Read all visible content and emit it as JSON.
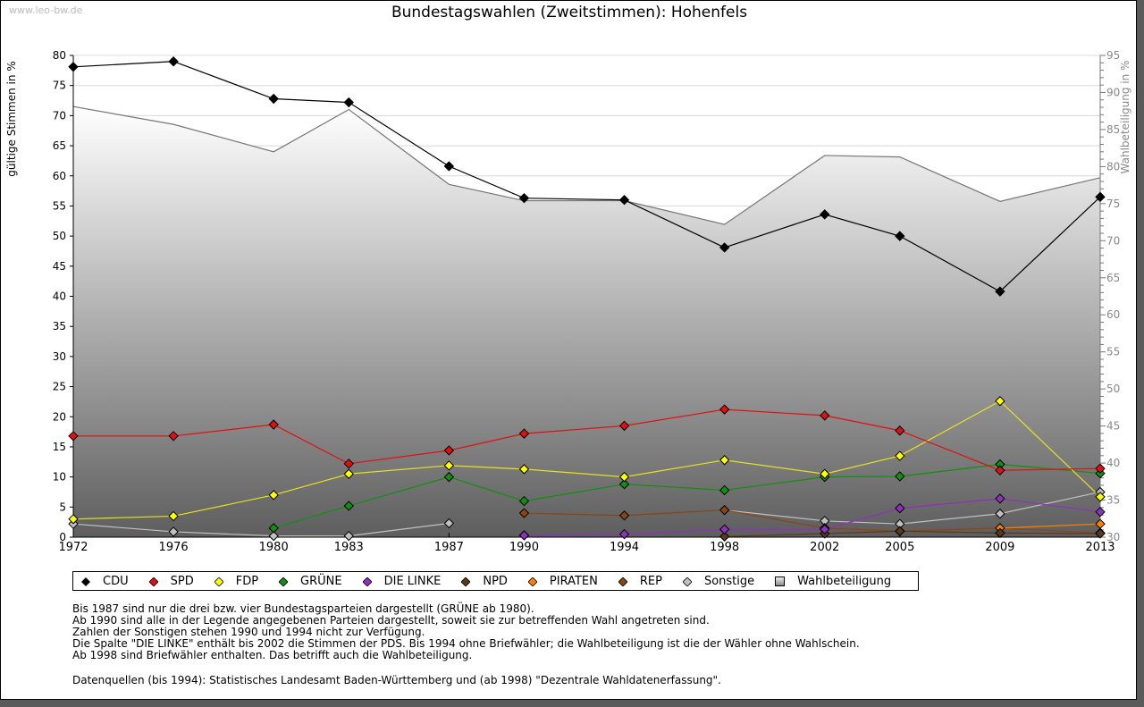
{
  "watermark": "www.leo-bw.de",
  "title": "Bundestagswahlen (Zweitstimmen): Hohenfels",
  "chart_data": {
    "type": "line",
    "title": "Bundestagswahlen (Zweitstimmen): Hohenfels",
    "xlabel": "",
    "ylabel": "gültige Stimmen in %",
    "y2label": "Wahlbeteiligung in %",
    "ylim": [
      0,
      80
    ],
    "y2lim": [
      30,
      95
    ],
    "yticks": [
      0,
      5,
      10,
      15,
      20,
      25,
      30,
      35,
      40,
      45,
      50,
      55,
      60,
      65,
      70,
      75,
      80
    ],
    "y2ticks": [
      30,
      35,
      40,
      45,
      50,
      55,
      60,
      65,
      70,
      75,
      80,
      85,
      90,
      95
    ],
    "x": [
      "1972",
      "1976",
      "1980",
      "1983",
      "1987",
      "1990",
      "1994",
      "1998",
      "2002",
      "2005",
      "2009",
      "2013"
    ],
    "grid": true,
    "legend_position": "bottom",
    "area_series": {
      "name": "Wahlbeteiligung",
      "axis": "right",
      "values": [
        88.1,
        85.7,
        82.0,
        87.7,
        77.6,
        75.4,
        75.4,
        72.2,
        81.5,
        81.3,
        75.3,
        78.5
      ]
    },
    "series": [
      {
        "name": "CDU",
        "color": "#000000",
        "values": [
          78.1,
          79.0,
          72.8,
          72.2,
          61.6,
          56.3,
          56.0,
          48.1,
          53.6,
          50.0,
          40.8,
          56.5
        ]
      },
      {
        "name": "SPD",
        "color": "#e01010",
        "values": [
          16.8,
          16.8,
          18.7,
          12.2,
          14.4,
          17.2,
          18.5,
          21.2,
          20.2,
          17.7,
          11.1,
          11.4
        ]
      },
      {
        "name": "FDP",
        "color": "#ffff00",
        "values": [
          3.0,
          3.5,
          7.0,
          10.5,
          11.9,
          11.3,
          10.0,
          12.8,
          10.5,
          13.5,
          22.6,
          6.7
        ]
      },
      {
        "name": "GRÜNE",
        "color": "#109010",
        "values": [
          null,
          null,
          1.5,
          5.2,
          10.0,
          6.0,
          8.8,
          7.8,
          10.0,
          10.1,
          12.1,
          10.6
        ]
      },
      {
        "name": "DIE LINKE",
        "color": "#9030c0",
        "values": [
          null,
          null,
          null,
          null,
          null,
          0.3,
          0.5,
          1.3,
          1.3,
          4.8,
          6.4,
          4.2
        ]
      },
      {
        "name": "NPD",
        "color": "#5a3a1a",
        "values": [
          null,
          null,
          null,
          null,
          null,
          0.3,
          null,
          0.1,
          0.6,
          1.0,
          0.7,
          0.6
        ]
      },
      {
        "name": "PIRATEN",
        "color": "#ff8000",
        "values": [
          null,
          null,
          null,
          null,
          null,
          null,
          null,
          null,
          null,
          null,
          1.5,
          2.2
        ]
      },
      {
        "name": "REP",
        "color": "#8b4513",
        "values": [
          null,
          null,
          null,
          null,
          null,
          4.0,
          3.6,
          4.5,
          1.5,
          1.0,
          1.5,
          0.7
        ]
      },
      {
        "name": "Sonstige",
        "color": "#c0c0c0",
        "values": [
          2.2,
          0.9,
          0.2,
          0.2,
          2.3,
          null,
          null,
          4.5,
          2.7,
          2.2,
          3.9,
          7.5
        ]
      }
    ]
  },
  "legend": [
    {
      "label": "CDU",
      "color": "#000000"
    },
    {
      "label": "SPD",
      "color": "#e01010"
    },
    {
      "label": "FDP",
      "color": "#ffff00"
    },
    {
      "label": "GRÜNE",
      "color": "#109010"
    },
    {
      "label": "DIE LINKE",
      "color": "#9030c0"
    },
    {
      "label": "NPD",
      "color": "#5a3a1a"
    },
    {
      "label": "PIRATEN",
      "color": "#ff8000"
    },
    {
      "label": "REP",
      "color": "#8b4513"
    },
    {
      "label": "Sonstige",
      "color": "#c0c0c0"
    },
    {
      "label": "Wahlbeteiligung",
      "color": "#aaaaaa",
      "shape": "square"
    }
  ],
  "notes": [
    "Bis 1987 sind nur die drei bzw. vier Bundestagsparteien dargestellt (GRÜNE ab 1980).",
    "Ab 1990 sind alle in der Legende angegebenen Parteien dargestellt, soweit sie zur betreffenden Wahl angetreten sind.",
    "Zahlen der Sonstigen stehen 1990 und 1994 nicht zur Verfügung.",
    "Die Spalte \"DIE LINKE\" enthält bis 2002 die Stimmen der PDS. Bis 1994 ohne Briefwähler; die Wahlbeteiligung ist die der Wähler ohne Wahlschein.",
    "Ab 1998 sind Briefwähler enthalten. Das betrifft auch die Wahlbeteiligung."
  ],
  "source": "Datenquellen (bis 1994): Statistisches Landesamt Baden-Württemberg und (ab 1998) \"Dezentrale Wahldatenerfassung\"."
}
